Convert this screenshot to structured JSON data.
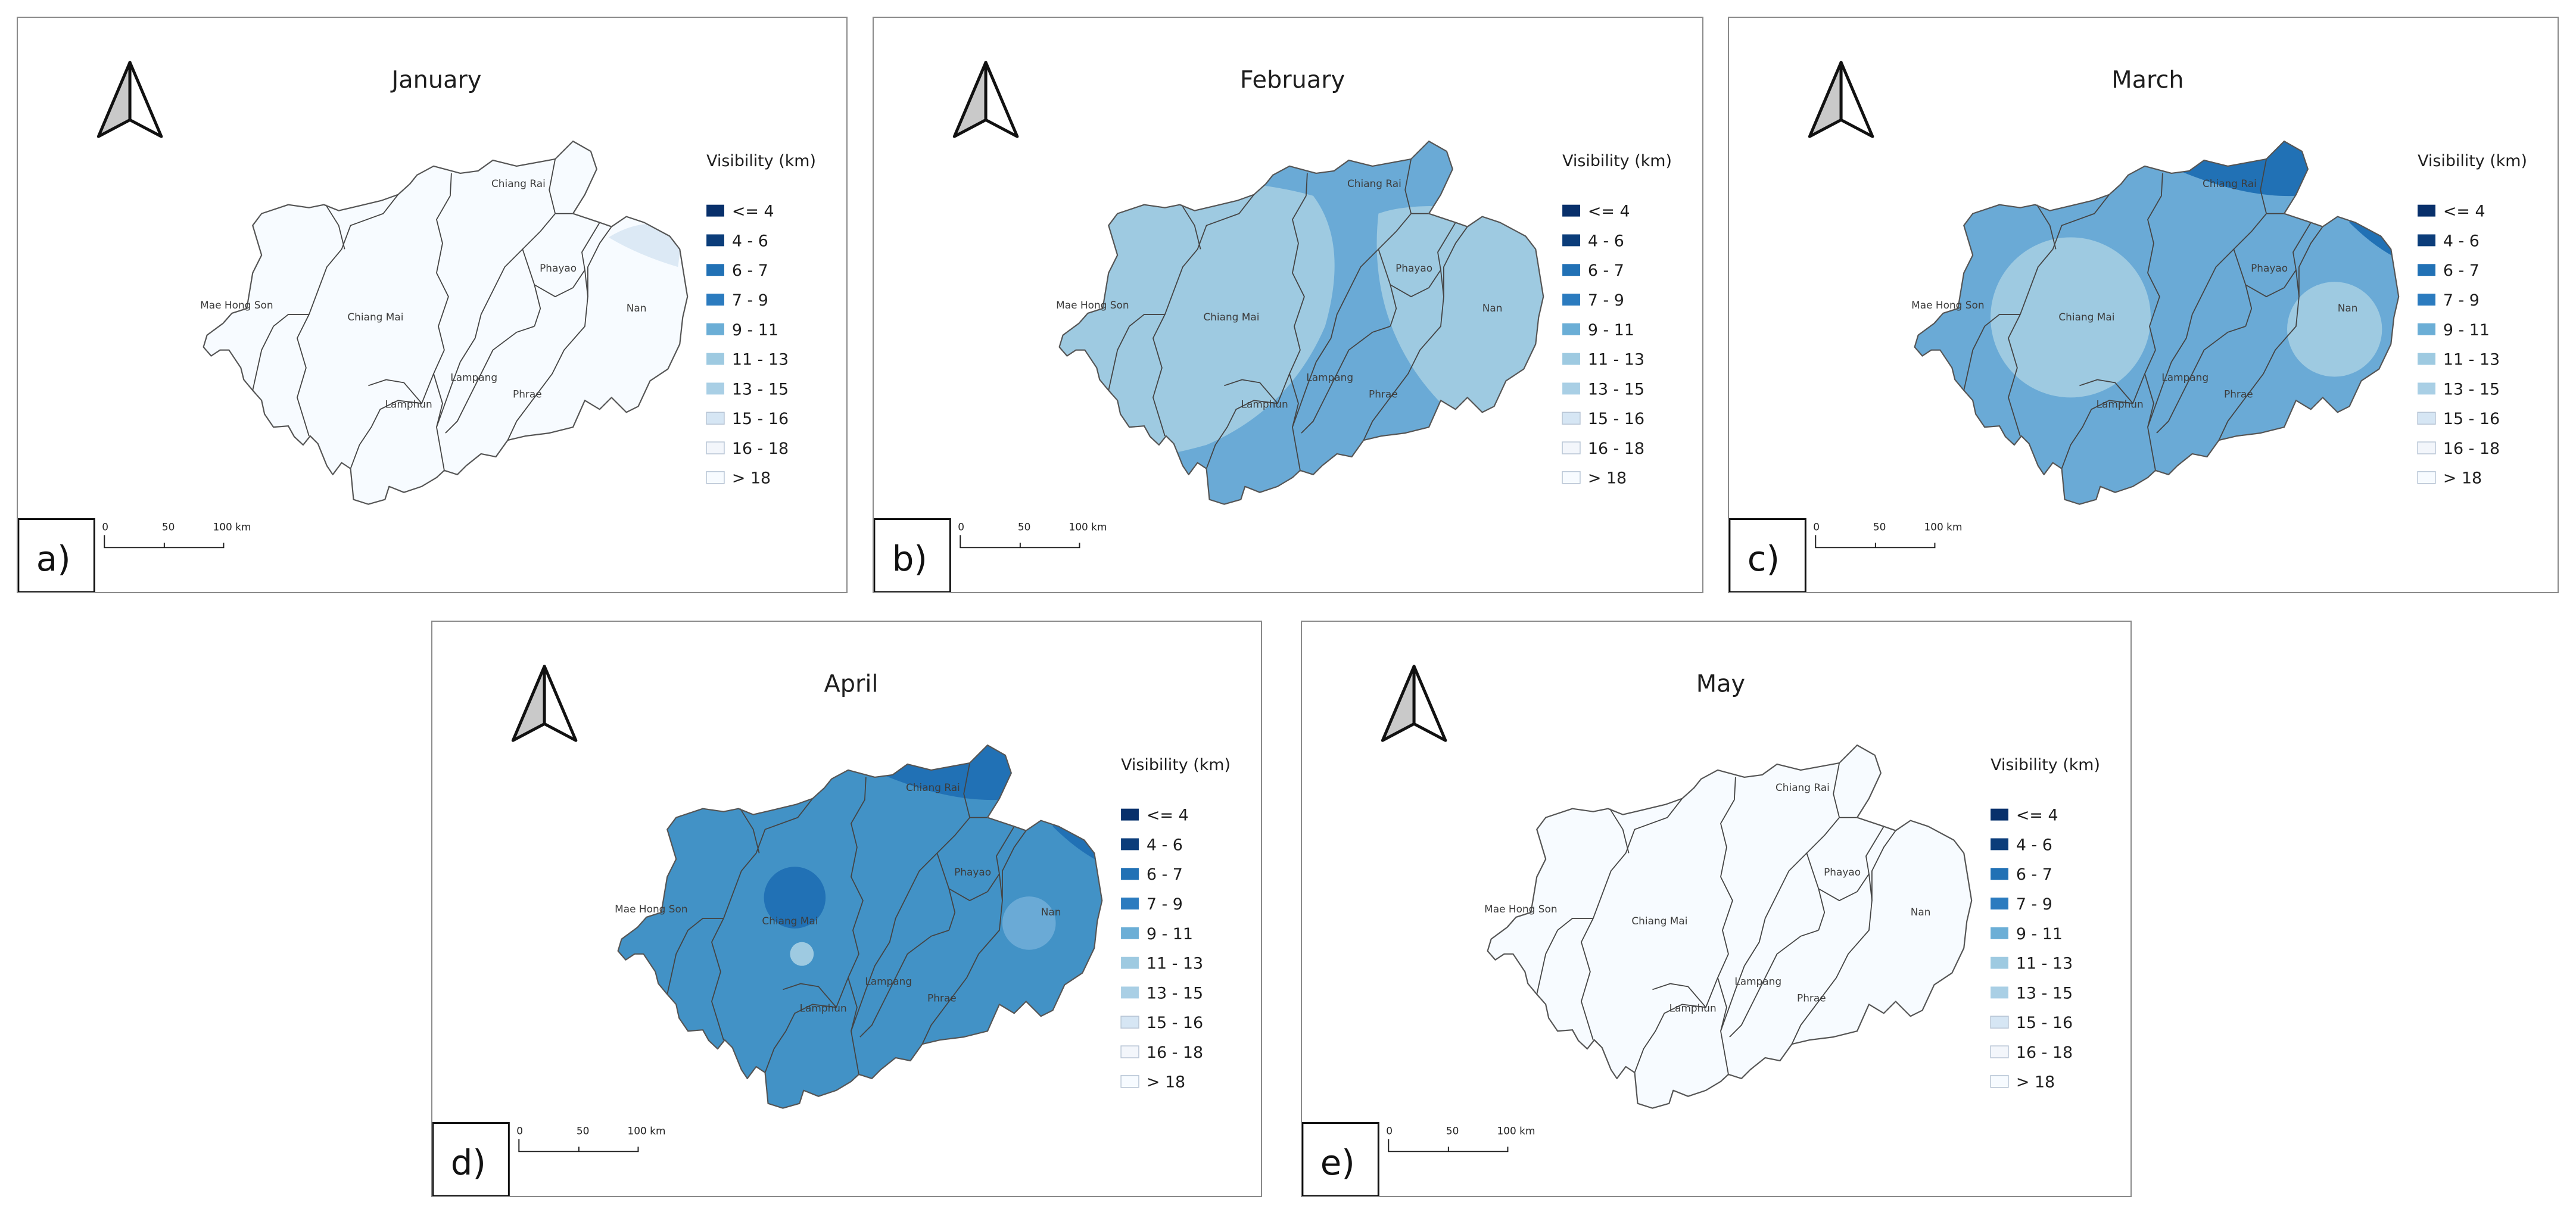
{
  "legend": {
    "title": "Visibility (km)",
    "classes": [
      {
        "label": "<= 4",
        "color": "#08306b"
      },
      {
        "label": "4 - 6",
        "color": "#0b3d7a"
      },
      {
        "label": "6 - 7",
        "color": "#2171b5"
      },
      {
        "label": "7 - 9",
        "color": "#2b7bbf"
      },
      {
        "label": "9 - 11",
        "color": "#6baed6"
      },
      {
        "label": "11 - 13",
        "color": "#9ecae1"
      },
      {
        "label": "13 - 15",
        "color": "#a9cfe5"
      },
      {
        "label": "15 - 16",
        "color": "#d6e6f4"
      },
      {
        "label": "16 - 18",
        "color": "#f3f6fb"
      },
      {
        "label": "> 18",
        "color": "#f7fbff"
      }
    ]
  },
  "scalebar": {
    "labels": [
      "0",
      "50",
      "100 km"
    ]
  },
  "provinces": [
    "Chiang Rai",
    "Phayao",
    "Nan",
    "Mae Hong Son",
    "Chiang Mai",
    "Lampang",
    "Lamphun",
    "Phrae"
  ],
  "panels": [
    {
      "tag": "a)",
      "title": "January",
      "base": "#f7fbff",
      "overlays": [
        {
          "shape": "nan-ne-lens",
          "color": "#dce9f5"
        }
      ]
    },
    {
      "tag": "b)",
      "title": "February",
      "base": "#6aaad6",
      "overlays": [
        {
          "shape": "west-blob",
          "color": "#9ecae1"
        },
        {
          "shape": "east-band",
          "color": "#9ecae1"
        }
      ]
    },
    {
      "tag": "c)",
      "title": "March",
      "base": "#6aaad6",
      "overlays": [
        {
          "shape": "north-cap",
          "color": "#2171b5"
        },
        {
          "shape": "ne-corner",
          "color": "#2171b5"
        },
        {
          "shape": "cm-circle",
          "color": "#9ecae1"
        },
        {
          "shape": "nan-circle",
          "color": "#9ecae1"
        }
      ]
    },
    {
      "tag": "d)",
      "title": "April",
      "base": "#4292c6",
      "overlays": [
        {
          "shape": "north-cap",
          "color": "#2171b5"
        },
        {
          "shape": "ne-corner",
          "color": "#2171b5"
        },
        {
          "shape": "cm-small-dark",
          "color": "#2171b5"
        },
        {
          "shape": "nan-circle-small",
          "color": "#6aaad6"
        },
        {
          "shape": "cm-dot",
          "color": "#9ecae1"
        }
      ]
    },
    {
      "tag": "e)",
      "title": "May",
      "base": "#f7fbff",
      "overlays": []
    }
  ]
}
